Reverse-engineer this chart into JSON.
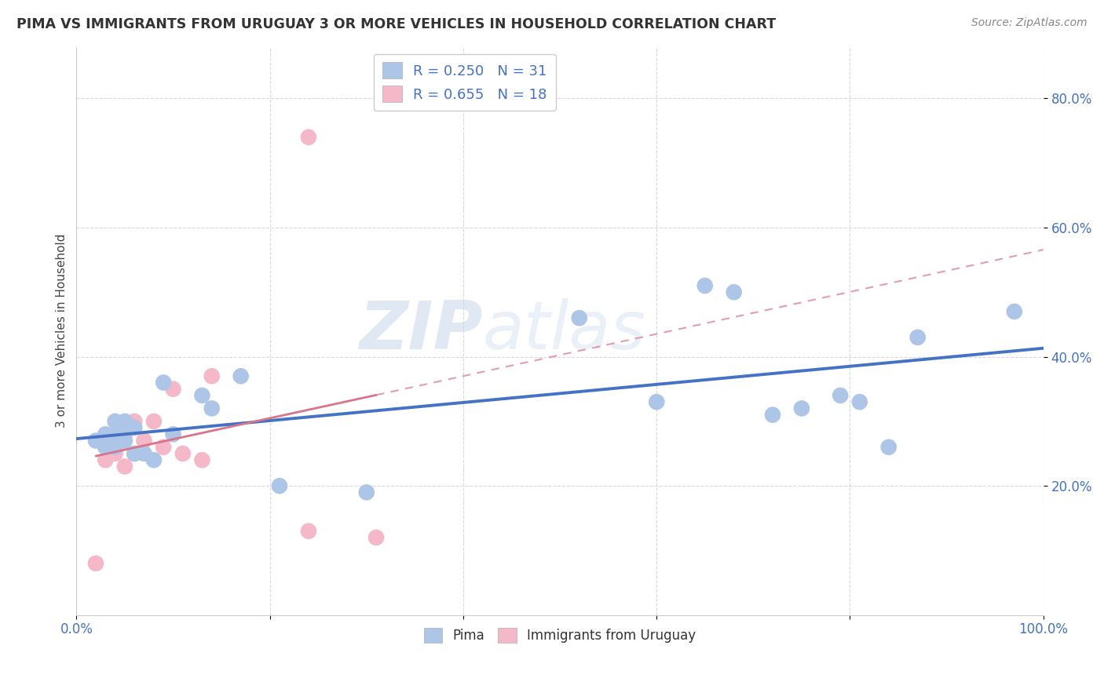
{
  "title": "PIMA VS IMMIGRANTS FROM URUGUAY 3 OR MORE VEHICLES IN HOUSEHOLD CORRELATION CHART",
  "source": "Source: ZipAtlas.com",
  "xlabel": "",
  "ylabel": "3 or more Vehicles in Household",
  "xlim": [
    0.0,
    1.0
  ],
  "ylim": [
    0.0,
    0.88
  ],
  "xticks": [
    0.0,
    0.2,
    0.4,
    0.6,
    0.8,
    1.0
  ],
  "xticklabels": [
    "0.0%",
    "",
    "",
    "",
    "",
    "100.0%"
  ],
  "yticks": [
    0.2,
    0.4,
    0.6,
    0.8
  ],
  "yticklabels": [
    "20.0%",
    "40.0%",
    "60.0%",
    "80.0%"
  ],
  "legend_entries": [
    {
      "label": "R = 0.250",
      "n": "N = 31",
      "color": "#adc6e8"
    },
    {
      "label": "R = 0.655",
      "n": "N = 18",
      "color": "#f4b8c8"
    }
  ],
  "legend_labels_bottom": [
    "Pima",
    "Immigrants from Uruguay"
  ],
  "watermark_zip": "ZIP",
  "watermark_atlas": "atlas",
  "pima_color": "#adc6e8",
  "uruguay_color": "#f4b8c8",
  "pima_line_color": "#4472c4",
  "uruguay_line_color": "#d9748a",
  "grid_color": "#d0d0d0",
  "background_color": "#ffffff",
  "pima_x": [
    0.02,
    0.03,
    0.03,
    0.04,
    0.04,
    0.04,
    0.05,
    0.05,
    0.05,
    0.06,
    0.06,
    0.07,
    0.08,
    0.09,
    0.1,
    0.13,
    0.14,
    0.17,
    0.21,
    0.3,
    0.52,
    0.6,
    0.65,
    0.68,
    0.72,
    0.75,
    0.79,
    0.81,
    0.84,
    0.87,
    0.97
  ],
  "pima_y": [
    0.27,
    0.26,
    0.28,
    0.26,
    0.3,
    0.28,
    0.27,
    0.3,
    0.29,
    0.25,
    0.29,
    0.25,
    0.24,
    0.36,
    0.28,
    0.34,
    0.32,
    0.37,
    0.2,
    0.19,
    0.46,
    0.33,
    0.51,
    0.5,
    0.31,
    0.32,
    0.34,
    0.33,
    0.26,
    0.43,
    0.47
  ],
  "uruguay_x": [
    0.02,
    0.03,
    0.04,
    0.04,
    0.05,
    0.05,
    0.06,
    0.06,
    0.07,
    0.08,
    0.09,
    0.1,
    0.11,
    0.13,
    0.14,
    0.24,
    0.24,
    0.31
  ],
  "uruguay_y": [
    0.08,
    0.24,
    0.25,
    0.26,
    0.23,
    0.28,
    0.25,
    0.3,
    0.27,
    0.3,
    0.26,
    0.35,
    0.25,
    0.24,
    0.37,
    0.13,
    0.74,
    0.12
  ]
}
